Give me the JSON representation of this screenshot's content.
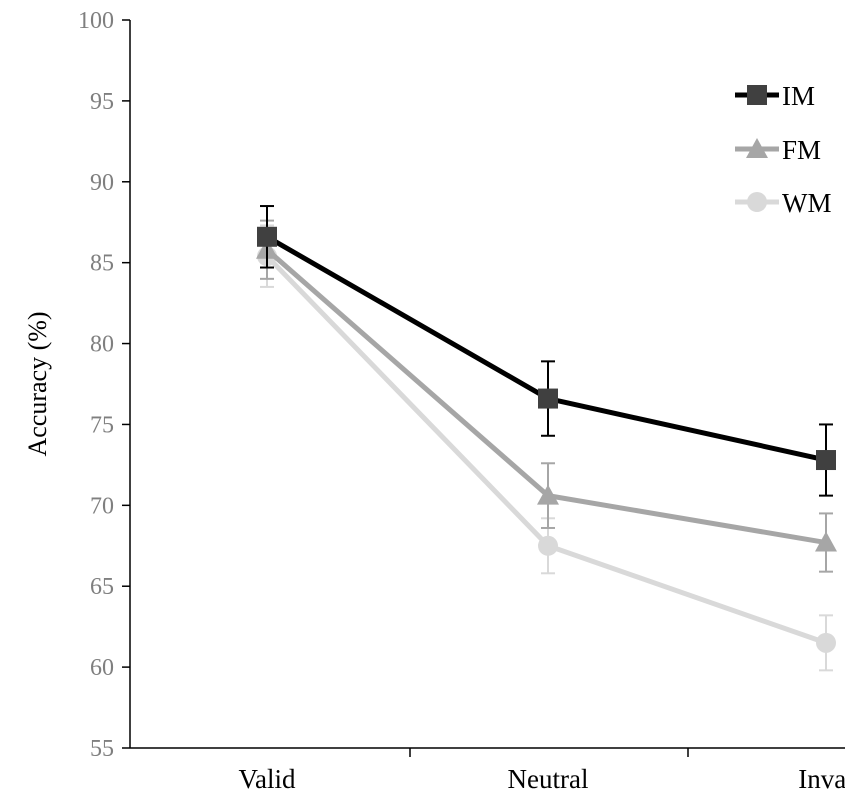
{
  "chart_data": {
    "type": "line",
    "categories": [
      "Valid",
      "Neutral",
      "Inval"
    ],
    "ylabel": "Accuracy (%)",
    "xlabel": "",
    "ylim": [
      55,
      100
    ],
    "yticks": [
      55,
      60,
      65,
      70,
      75,
      80,
      85,
      90,
      95,
      100
    ],
    "grid": false,
    "legend": "top-right",
    "series": [
      {
        "name": "IM",
        "values": [
          86.6,
          76.6,
          72.8
        ],
        "errors": [
          1.9,
          2.3,
          2.2
        ],
        "marker": "square",
        "color": "#000000",
        "marker_color": "#404040"
      },
      {
        "name": "FM",
        "values": [
          85.8,
          70.6,
          67.7
        ],
        "errors": [
          1.8,
          2.0,
          1.8
        ],
        "marker": "triangle",
        "color": "#a6a6a6",
        "marker_color": "#a6a6a6"
      },
      {
        "name": "WM",
        "values": [
          85.4,
          67.5,
          61.5
        ],
        "errors": [
          1.9,
          1.7,
          1.7
        ],
        "marker": "circle",
        "color": "#d9d9d9",
        "marker_color": "#d9d9d9"
      }
    ]
  }
}
